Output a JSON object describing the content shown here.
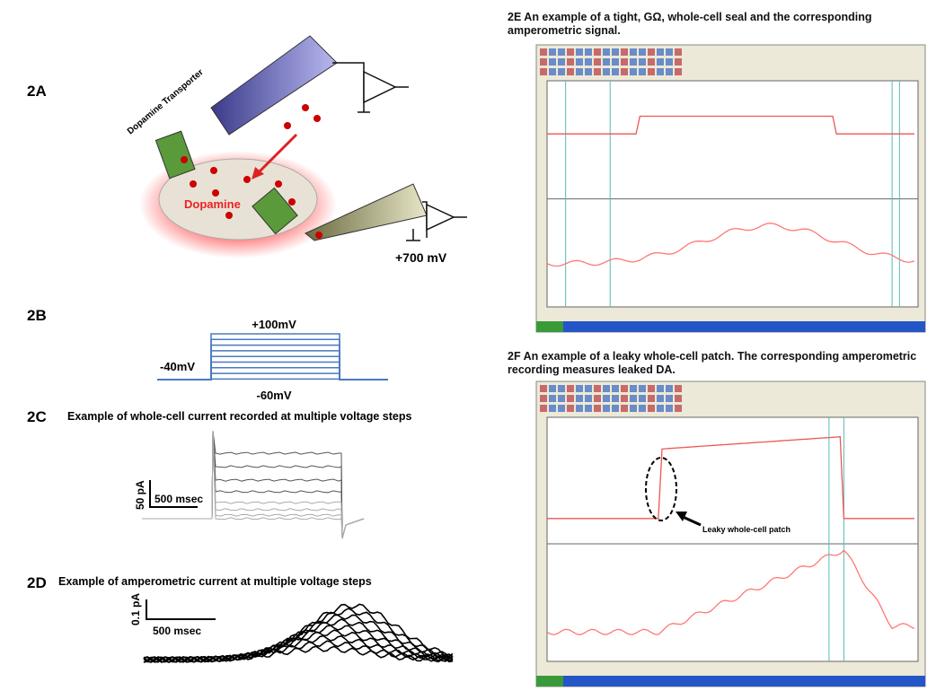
{
  "panels": {
    "a": {
      "label": "2A",
      "transporter": "Dopamine Transporter",
      "dopamine": "Dopamine",
      "voltage": "+700 mV"
    },
    "b": {
      "label": "2B",
      "high": "+100mV",
      "hold": "-40mV",
      "low": "-60mV"
    },
    "c": {
      "label": "2C",
      "title": "Example of whole-cell current recorded at multiple voltage steps",
      "scale_y": "50 pA",
      "scale_x": "500 msec"
    },
    "d": {
      "label": "2D",
      "title": "Example of amperometric current at multiple voltage steps",
      "scale_y": "0.1 pA",
      "scale_x": "500 msec"
    },
    "e": {
      "title": "2E  An example of a tight, GΩ, whole-cell seal and the corresponding amperometric signal."
    },
    "f": {
      "title": "2F  An example of a leaky whole-cell patch. The corresponding amperometric recording measures leaked DA.",
      "annotation": "Leaky whole-cell patch"
    }
  }
}
